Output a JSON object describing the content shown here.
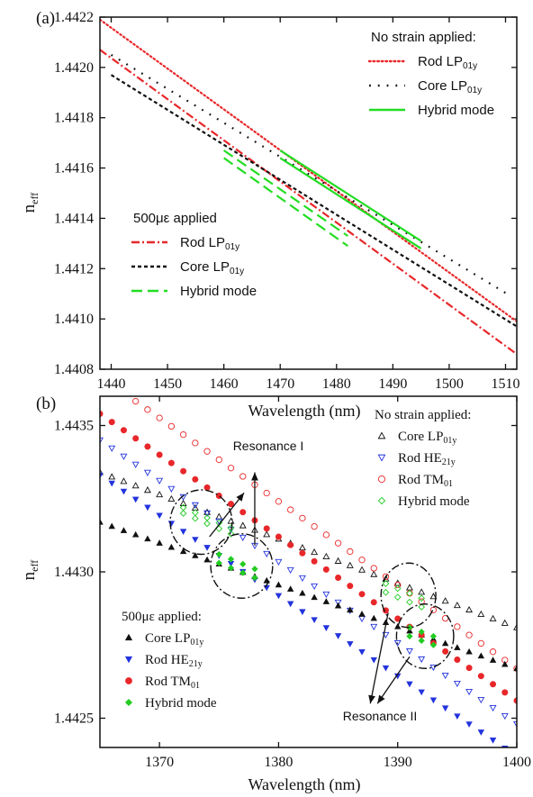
{
  "chart_data": [
    {
      "panel": "(a)",
      "type": "line",
      "xlabel": "Wavelength (nm)",
      "ylabel": "n",
      "ylabel_sub": "eff",
      "xlim": [
        1438,
        1512
      ],
      "ylim": [
        1.4408,
        1.4422
      ],
      "xticks": [
        1440,
        1450,
        1460,
        1470,
        1480,
        1490,
        1500,
        1510
      ],
      "yticks": [
        "1.4408",
        "1.4410",
        "1.4412",
        "1.4414",
        "1.4416",
        "1.4418",
        "1.4420",
        "1.4422"
      ],
      "legend_top": {
        "title": "No strain applied:",
        "entries": [
          {
            "label": "Rod LP",
            "sub": "01y",
            "color": "#e8272a",
            "style": "dot"
          },
          {
            "label": "Core LP",
            "sub": "01y",
            "color": "#111111",
            "style": "sparsedot"
          },
          {
            "label": "Hybrid mode",
            "sub": "",
            "color": "#22dd22",
            "style": "solid"
          }
        ]
      },
      "legend_bottom": {
        "title": "500με applied",
        "entries": [
          {
            "label": "Rod LP",
            "sub": "01y",
            "color": "#e8272a",
            "style": "dashdot"
          },
          {
            "label": "Core LP",
            "sub": "01y",
            "color": "#111111",
            "style": "shortdash"
          },
          {
            "label": "Hybrid mode",
            "sub": "",
            "color": "#22dd22",
            "style": "longdash"
          }
        ]
      },
      "series": [
        {
          "legend": "No strain Rod LP01y",
          "color": "#e8272a",
          "style": "dot",
          "x": [
            1438,
            1512
          ],
          "y": [
            1.44219,
            1.44099
          ]
        },
        {
          "legend": "No strain Core LP01y",
          "color": "#111111",
          "style": "sparsedot",
          "x": [
            1440,
            1511
          ],
          "y": [
            1.44205,
            1.44109
          ]
        },
        {
          "legend": "No strain Hybrid mode",
          "color": "#22dd22",
          "style": "solid",
          "x": [
            1470,
            1495
          ],
          "y": [
            1.44167,
            1.44131
          ]
        },
        {
          "legend": "No strain Hybrid mode",
          "color": "#22dd22",
          "style": "solid",
          "x": [
            1470,
            1495
          ],
          "y": [
            1.44164,
            1.44128
          ]
        },
        {
          "legend": "500με Rod LP01y",
          "color": "#e8272a",
          "style": "dashdot",
          "x": [
            1438,
            1512
          ],
          "y": [
            1.44207,
            1.44086
          ]
        },
        {
          "legend": "500με Core LP01y",
          "color": "#111111",
          "style": "shortdash",
          "x": [
            1440,
            1512
          ],
          "y": [
            1.44197,
            1.44097
          ]
        },
        {
          "legend": "500με Hybrid mode",
          "color": "#22dd22",
          "style": "longdash",
          "x": [
            1460,
            1482
          ],
          "y": [
            1.44167,
            1.44133
          ]
        },
        {
          "legend": "500με Hybrid mode",
          "color": "#22dd22",
          "style": "longdash",
          "x": [
            1460,
            1482
          ],
          "y": [
            1.44164,
            1.44129
          ]
        }
      ]
    },
    {
      "panel": "(b)",
      "type": "scatter",
      "xlabel": "Wavelength (nm)",
      "ylabel": "n",
      "ylabel_sub": "eff",
      "xlim": [
        1365,
        1400
      ],
      "ylim": [
        1.4424,
        1.4436
      ],
      "xticks": [
        1370,
        1380,
        1390,
        1400
      ],
      "yticks": [
        "1.4425",
        "1.4430",
        "1.4435"
      ],
      "annotations": [
        "Resonance I",
        "Resonance II"
      ],
      "legend_top": {
        "title": "No strain applied:",
        "entries": [
          {
            "label": "Core LP",
            "sub": "01y",
            "color": "#111111",
            "marker": "tri-up-open"
          },
          {
            "label": "Rod HE",
            "sub": "21y",
            "color": "#2233dd",
            "marker": "tri-down-open"
          },
          {
            "label": "Rod TM",
            "sub": "01",
            "color": "#e8272a",
            "marker": "circle-open"
          },
          {
            "label": "Hybrid mode",
            "sub": "",
            "color": "#22cc22",
            "marker": "diamond-open"
          }
        ]
      },
      "legend_bottom": {
        "title": "500με applied:",
        "entries": [
          {
            "label": "Core LP",
            "sub": "01y",
            "color": "#111111",
            "marker": "tri-up"
          },
          {
            "label": "Rod HE",
            "sub": "21y",
            "color": "#2233dd",
            "marker": "tri-down"
          },
          {
            "label": "Rod TM",
            "sub": "01",
            "color": "#e8272a",
            "marker": "circle"
          },
          {
            "label": "Hybrid mode",
            "sub": "",
            "color": "#22cc22",
            "marker": "diamond"
          }
        ]
      },
      "series": [
        {
          "legend": "No strain Core LP01y",
          "color": "#111111",
          "marker": "tri-up-open",
          "x": [
            1365,
            1400
          ],
          "y": [
            1.44334,
            1.44281
          ],
          "n": 36
        },
        {
          "legend": "No strain Rod HE21y",
          "color": "#2233dd",
          "marker": "tri-down-open",
          "x": [
            1365,
            1400
          ],
          "y": [
            1.44345,
            1.44248
          ],
          "n": 36
        },
        {
          "legend": "No strain Rod TM01",
          "color": "#e8272a",
          "marker": "circle-open",
          "x": [
            1366,
            1400
          ],
          "y": [
            1.44364,
            1.44267
          ],
          "n": 35
        },
        {
          "legend": "No strain Hybrid mode",
          "color": "#22cc22",
          "marker": "diamond-open",
          "x": [
            1372,
            1376
          ],
          "y": [
            1.44322,
            1.44315
          ],
          "n": 5
        },
        {
          "legend": "No strain Hybrid mode",
          "color": "#22cc22",
          "marker": "diamond-open",
          "x": [
            1372,
            1376
          ],
          "y": [
            1.4432,
            1.44313
          ],
          "n": 5
        },
        {
          "legend": "No strain Hybrid mode",
          "color": "#22cc22",
          "marker": "diamond-open",
          "x": [
            1389,
            1392
          ],
          "y": [
            1.44296,
            1.44291
          ],
          "n": 4
        },
        {
          "legend": "No strain Hybrid mode",
          "color": "#22cc22",
          "marker": "diamond-open",
          "x": [
            1389,
            1392
          ],
          "y": [
            1.44293,
            1.44288
          ],
          "n": 4
        },
        {
          "legend": "500με Core LP01y",
          "color": "#111111",
          "marker": "tri-up",
          "x": [
            1365,
            1400
          ],
          "y": [
            1.44317,
            1.44267
          ],
          "n": 36
        },
        {
          "legend": "500με Rod HE21y",
          "color": "#2233dd",
          "marker": "tri-down",
          "x": [
            1365,
            1400
          ],
          "y": [
            1.44333,
            1.44237
          ],
          "n": 36
        },
        {
          "legend": "500με Rod TM01",
          "color": "#e8272a",
          "marker": "circle",
          "x": [
            1365,
            1400
          ],
          "y": [
            1.44354,
            1.44256
          ],
          "n": 36
        },
        {
          "legend": "500με Hybrid mode",
          "color": "#22cc22",
          "marker": "diamond",
          "x": [
            1375,
            1378
          ],
          "y": [
            1.44306,
            1.44301
          ],
          "n": 4
        },
        {
          "legend": "500με Hybrid mode",
          "color": "#22cc22",
          "marker": "diamond",
          "x": [
            1375,
            1378
          ],
          "y": [
            1.44303,
            1.44298
          ],
          "n": 4
        },
        {
          "legend": "500με Hybrid mode",
          "color": "#22cc22",
          "marker": "diamond",
          "x": [
            1391,
            1393
          ],
          "y": [
            1.44281,
            1.44278
          ],
          "n": 3
        },
        {
          "legend": "500με Hybrid mode",
          "color": "#22cc22",
          "marker": "diamond",
          "x": [
            1391,
            1393
          ],
          "y": [
            1.44278,
            1.44275
          ],
          "n": 3
        }
      ],
      "ellipses": [
        {
          "cx": 1373.5,
          "cy": 1.44317,
          "rx": 2.6,
          "ry": 0.00011
        },
        {
          "cx": 1376.9,
          "cy": 1.44302,
          "rx": 2.6,
          "ry": 0.00011
        },
        {
          "cx": 1390.9,
          "cy": 1.44292,
          "rx": 2.3,
          "ry": 0.00011
        },
        {
          "cx": 1392.3,
          "cy": 1.44278,
          "rx": 2.4,
          "ry": 0.00011
        }
      ],
      "arrows": [
        {
          "from": [
            1374.2,
            1.44312
          ],
          "to": [
            1377.1,
            1.44327
          ]
        },
        {
          "from": [
            1378.0,
            1.44309
          ],
          "to": [
            1378.0,
            1.44334
          ]
        },
        {
          "from": [
            1389.2,
            1.44286
          ],
          "to": [
            1387.7,
            1.44255
          ]
        },
        {
          "from": [
            1391.0,
            1.44271
          ],
          "to": [
            1388.3,
            1.44255
          ]
        }
      ]
    }
  ]
}
